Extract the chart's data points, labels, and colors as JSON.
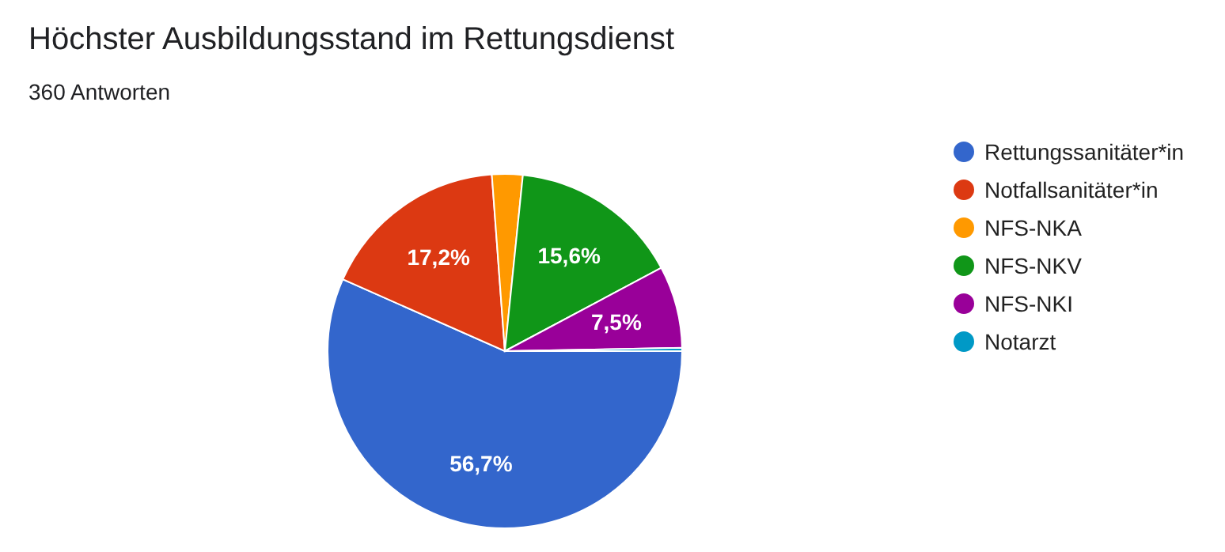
{
  "chart_data": {
    "type": "pie",
    "title": "Höchster Ausbildungsstand im Rettungsdienst",
    "subtitle": "360 Antworten",
    "categories": [
      "Rettungssanitäter*in",
      "Notfallsanitäter*in",
      "NFS-NKA",
      "NFS-NKV",
      "NFS-NKI",
      "Notarzt"
    ],
    "values": [
      56.7,
      17.2,
      2.8,
      15.6,
      7.5,
      0.3
    ],
    "colors": [
      "#3366cc",
      "#dc3912",
      "#ff9900",
      "#109618",
      "#990099",
      "#0099c6"
    ],
    "value_labels": [
      "56,7%",
      "17,2%",
      null,
      "15,6%",
      "7,5%",
      null
    ],
    "legend": "right"
  }
}
